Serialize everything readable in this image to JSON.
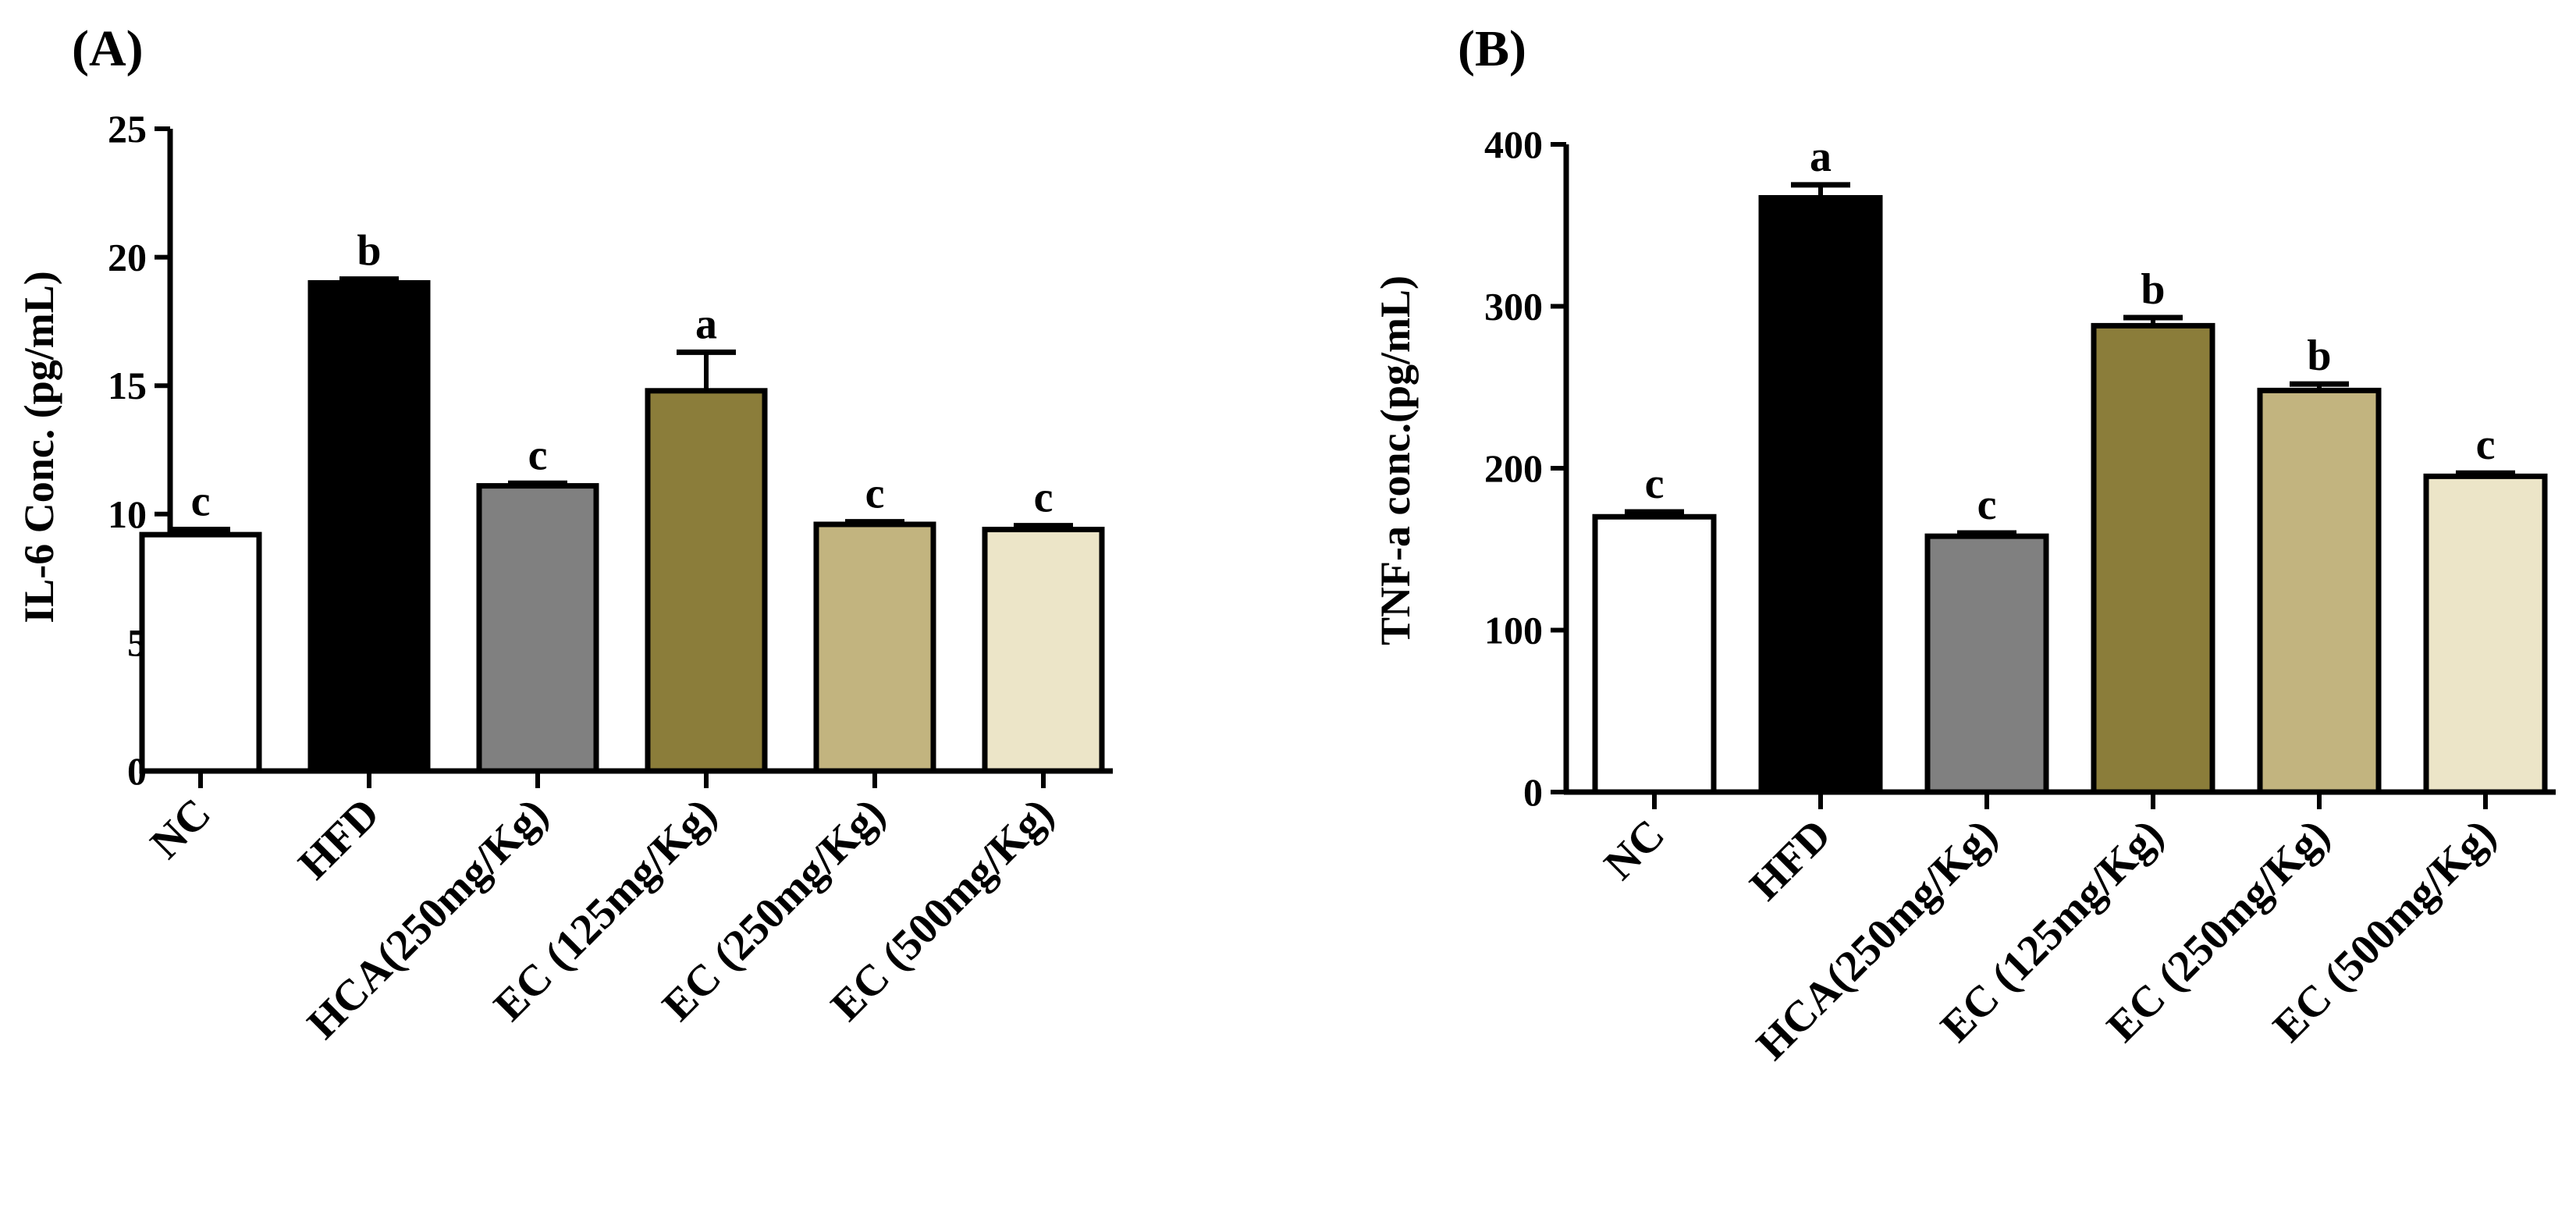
{
  "chart_data": [
    {
      "type": "bar",
      "panel_label": "(A)",
      "title": "",
      "xlabel": "",
      "ylabel": "IL-6 Conc. (pg/mL)",
      "ylim": [
        0,
        25
      ],
      "yticks": [
        "0",
        "5",
        "10",
        "15",
        "20",
        "25"
      ],
      "categories": [
        "NC",
        "HFD",
        "HCA(250mg/Kg)",
        "EC (125mg/Kg)",
        "EC (250mg/Kg)",
        "EC (500mg/Kg)"
      ],
      "values": [
        9.2,
        19.0,
        11.1,
        14.8,
        9.6,
        9.4
      ],
      "errors": [
        0.2,
        0.15,
        0.1,
        1.5,
        0.1,
        0.15
      ],
      "significance": [
        "c",
        "b",
        "c",
        "a",
        "c",
        "c"
      ],
      "colors": [
        "#ffffff",
        "#000000",
        "#808080",
        "#8b7d3a",
        "#c2b47f",
        "#ece5c8"
      ]
    },
    {
      "type": "bar",
      "panel_label": "(B)",
      "title": "",
      "xlabel": "",
      "ylabel": "TNF-a conc.(pg/mL)",
      "ylim": [
        0,
        400
      ],
      "yticks": [
        "0",
        "100",
        "200",
        "300",
        "400"
      ],
      "categories": [
        "NC",
        "HFD",
        "HCA(250mg/Kg)",
        "EC (125mg/Kg)",
        "EC (250mg/Kg)",
        "EC (500mg/Kg)"
      ],
      "values": [
        170,
        367,
        158,
        288,
        248,
        195
      ],
      "errors": [
        3,
        8,
        2,
        5,
        4,
        2
      ],
      "significance": [
        "c",
        "a",
        "c",
        "b",
        "b",
        "c"
      ],
      "colors": [
        "#ffffff",
        "#000000",
        "#808080",
        "#8b7d3a",
        "#c2b47f",
        "#ece5c8"
      ]
    }
  ]
}
